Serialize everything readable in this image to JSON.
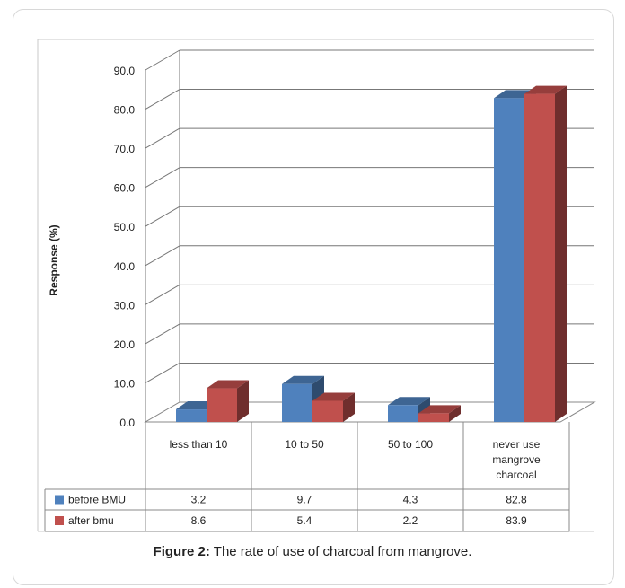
{
  "chart_data": {
    "type": "bar",
    "categories": [
      "less than 10",
      "10 to 50",
      "50 to 100",
      "never use mangrove charcoal"
    ],
    "category_lines": [
      [
        "less than 10"
      ],
      [
        "10 to 50"
      ],
      [
        "50 to 100"
      ],
      [
        "never use",
        "mangrove",
        "charcoal"
      ]
    ],
    "series": [
      {
        "name": "before BMU",
        "values": [
          3.2,
          9.7,
          4.3,
          82.8
        ],
        "display": [
          "3.2",
          "9.7",
          "4.3",
          "82.8"
        ],
        "color": "#4f81bd"
      },
      {
        "name": "after bmu",
        "values": [
          8.6,
          5.4,
          2.2,
          83.9
        ],
        "display": [
          "8.6",
          "5.4",
          "2.2",
          "83.9"
        ],
        "color": "#c0504d"
      }
    ],
    "ylabel": "Response (%)",
    "ylim": [
      0,
      90
    ],
    "yticks": [
      "0.0",
      "10.0",
      "20.0",
      "30.0",
      "40.0",
      "50.0",
      "60.0",
      "70.0",
      "80.0",
      "90.0"
    ],
    "grid": true,
    "legend": "data-table"
  },
  "caption": {
    "label": "Figure 2:",
    "text": " The rate of use of charcoal from mangrove."
  }
}
